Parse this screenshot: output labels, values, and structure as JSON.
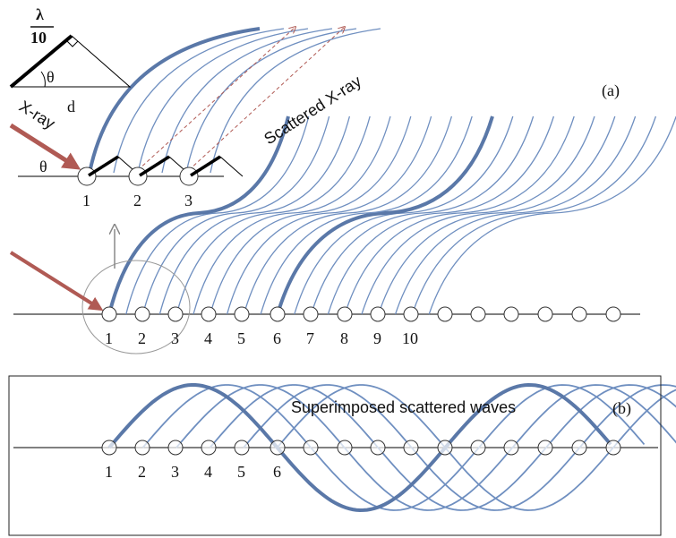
{
  "panel_a": {
    "label": "(a)",
    "inset": {
      "numerator": "λ",
      "denominator": "10",
      "angle": "θ",
      "side": "d"
    },
    "top": {
      "incident": "X-ray",
      "scattered": "Scattered X-ray",
      "angle": "θ",
      "atoms": [
        "1",
        "2",
        "3"
      ]
    },
    "bottom": {
      "atoms": [
        "1",
        "2",
        "3",
        "4",
        "5",
        "6",
        "7",
        "8",
        "9",
        "10"
      ]
    }
  },
  "panel_b": {
    "label": "(b)",
    "title": "Superimposed scattered waves",
    "atoms": [
      "1",
      "2",
      "3",
      "4",
      "5",
      "6"
    ]
  }
}
